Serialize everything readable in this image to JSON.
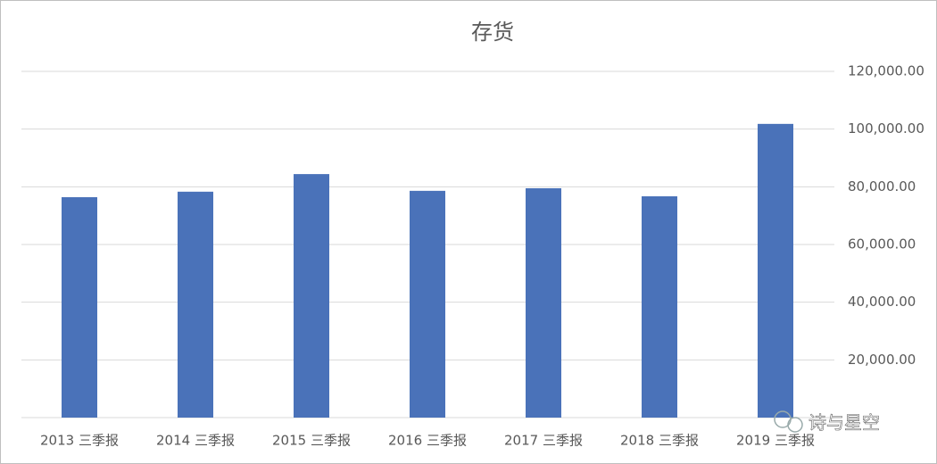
{
  "chart_data": {
    "type": "bar",
    "title": "存货",
    "categories": [
      "2013 三季报",
      "2014 三季报",
      "2015 三季报",
      "2016 三季报",
      "2017 三季报",
      "2018 三季报",
      "2019 三季报"
    ],
    "values": [
      76400,
      78300,
      84400,
      78600,
      79500,
      76700,
      101800
    ],
    "color": "#4a72b9",
    "ylim": [
      0,
      120000
    ],
    "yticks": [
      {
        "value": 20000,
        "label": "20,000.00"
      },
      {
        "value": 40000,
        "label": "40,000.00"
      },
      {
        "value": 60000,
        "label": "60,000.00"
      },
      {
        "value": 80000,
        "label": "80,000.00"
      },
      {
        "value": 100000,
        "label": "100,000.00"
      },
      {
        "value": 120000,
        "label": "120,000.00"
      }
    ],
    "grid": true,
    "y_axis_side": "right"
  },
  "watermark": "诗与星空"
}
